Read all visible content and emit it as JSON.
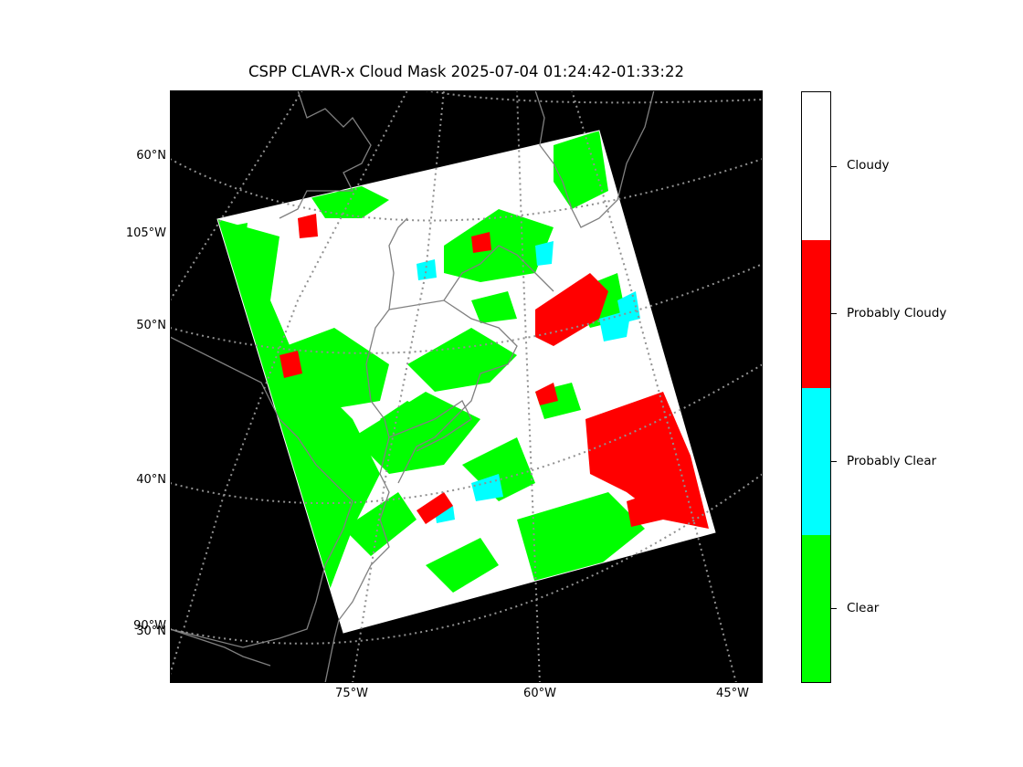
{
  "title": "CSPP CLAVR-x Cloud Mask 2025-07-04 01:24:42-01:33:22",
  "map": {
    "lat_labels": [
      "60°N",
      "105°W",
      "50°N",
      "40°N",
      "90°W",
      "30°N"
    ],
    "lon_labels": [
      "75°W",
      "60°W",
      "45°W"
    ]
  },
  "colorbar": {
    "categories": [
      {
        "label": "Cloudy",
        "color": "#ffffff"
      },
      {
        "label": "Probably Cloudy",
        "color": "#ff0000"
      },
      {
        "label": "Probably Clear",
        "color": "#00ffff"
      },
      {
        "label": "Clear",
        "color": "#00ff00"
      }
    ]
  },
  "colors": {
    "background": "#000000",
    "gridline": "#808080",
    "coastline": "#808080"
  }
}
